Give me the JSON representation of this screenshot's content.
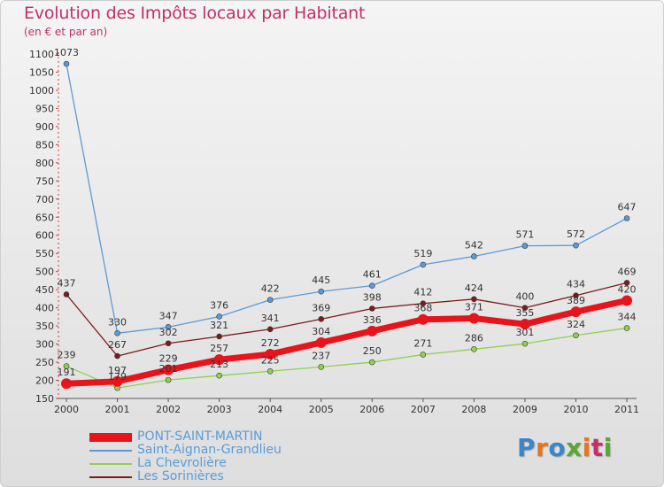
{
  "header": {
    "title": "Evolution des Impôts locaux par Habitant",
    "subtitle": "(en € et par an)"
  },
  "logo": {
    "text": "Proxiti",
    "colors": [
      "#3a86c8",
      "#e6761c",
      "#3a86c8",
      "#5aa832",
      "#e6761c",
      "#c0306a",
      "#5aa832"
    ]
  },
  "chart_data": {
    "type": "line",
    "title": "Evolution des Impôts locaux par Habitant",
    "subtitle": "(en € et par an)",
    "xlabel": "",
    "ylabel": "",
    "x": [
      "2000",
      "2001",
      "2002",
      "2003",
      "2004",
      "2005",
      "2006",
      "2007",
      "2008",
      "2009",
      "2010",
      "2011"
    ],
    "ylim": [
      150,
      1100
    ],
    "yticks": [
      150,
      200,
      250,
      300,
      350,
      400,
      450,
      500,
      550,
      600,
      650,
      700,
      750,
      800,
      850,
      900,
      950,
      1000,
      1050,
      1100
    ],
    "grid": false,
    "legend_position": "bottom-left",
    "series": [
      {
        "name": "PONT-SAINT-MARTIN",
        "color": "#e8141b",
        "values": [
          191,
          197,
          229,
          257,
          272,
          304,
          336,
          368,
          371,
          355,
          389,
          420
        ],
        "labels": [
          "191",
          "197",
          "229",
          "257",
          "272",
          "304",
          "336",
          "368",
          "371",
          "355",
          "389",
          "420"
        ]
      },
      {
        "name": "Saint-Aignan-Grandlieu",
        "color": "#5b9bd5",
        "values": [
          1073,
          330,
          347,
          376,
          422,
          445,
          461,
          519,
          542,
          571,
          572,
          647
        ],
        "labels": [
          "1073",
          "330",
          "347",
          "376",
          "422",
          "445",
          "461",
          "519",
          "542",
          "571",
          "572",
          "647"
        ]
      },
      {
        "name": "La Chevrolière",
        "color": "#8fd14f",
        "values": [
          239,
          179,
          201,
          213,
          225,
          237,
          250,
          271,
          286,
          301,
          324,
          344
        ],
        "labels": [
          "239",
          "179",
          "201",
          "213",
          "225",
          "237",
          "250",
          "271",
          "286",
          "301",
          "324",
          "344"
        ]
      },
      {
        "name": "Les Sorinières",
        "color": "#7b1c1c",
        "values": [
          437,
          267,
          302,
          321,
          341,
          369,
          398,
          412,
          424,
          400,
          434,
          469
        ],
        "labels": [
          "437",
          "267",
          "302",
          "321",
          "341",
          "369",
          "398",
          "412",
          "424",
          "400",
          "434",
          "469"
        ]
      }
    ]
  }
}
